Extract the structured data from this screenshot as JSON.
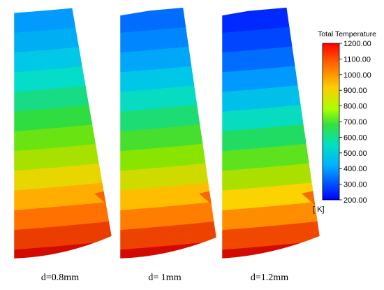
{
  "panels": [
    {
      "label": "d=0.8mm",
      "top_temp": 430,
      "bottom_temp": 1200
    },
    {
      "label": "d= 1mm",
      "top_temp": 360,
      "bottom_temp": 1200
    },
    {
      "label": "d=1.2mm",
      "top_temp": 260,
      "bottom_temp": 1200
    }
  ],
  "legend": {
    "title": "Total Temperature",
    "unit": "[ K]",
    "min": 200,
    "max": 1200,
    "ticks": [
      "1200.00",
      "1100.00",
      "1000.00",
      "900.00",
      "800.00",
      "700.00",
      "600.00",
      "500.00",
      "400.00",
      "300.00",
      "200.00"
    ]
  },
  "colors": {
    "scale": [
      "#0000ff",
      "#0080ff",
      "#00ffff",
      "#00ff80",
      "#00ff00",
      "#80ff00",
      "#ffff00",
      "#ff8000",
      "#ff0000",
      "#cc0000"
    ]
  }
}
